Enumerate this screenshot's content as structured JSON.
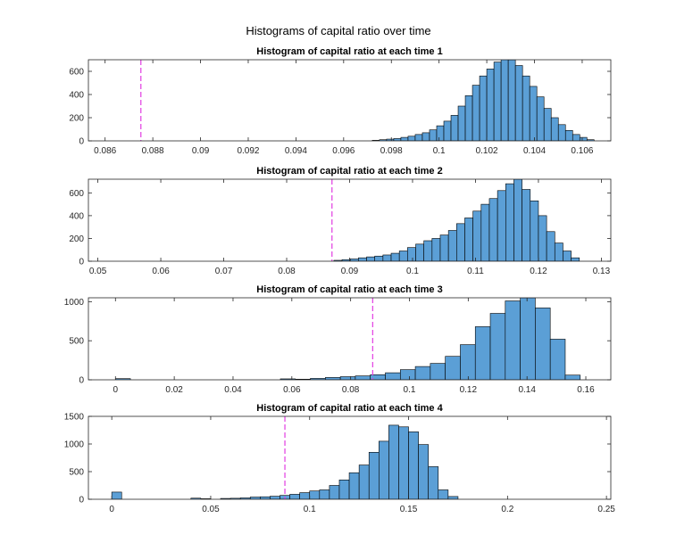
{
  "figure": {
    "title": "Histograms of capital ratio over time",
    "bar_color": "#5B9FD6",
    "bar_edge_color": "#000000",
    "threshold_color": "#E23DE2"
  },
  "chart_data": [
    {
      "type": "bar",
      "title": "Histogram of capital ratio at each time 1",
      "xlim": [
        0.0853,
        0.1072
      ],
      "ylim": [
        0,
        700
      ],
      "xticks": [
        0.086,
        0.088,
        0.09,
        0.092,
        0.094,
        0.096,
        0.098,
        0.1,
        0.102,
        0.104,
        0.106
      ],
      "xtick_labels": [
        "0.086",
        "0.088",
        "0.09",
        "0.092",
        "0.094",
        "0.096",
        "0.098",
        "0.1",
        "0.102",
        "0.104",
        "0.106"
      ],
      "yticks": [
        0,
        200,
        400,
        600
      ],
      "ytick_labels": [
        "0",
        "200",
        "400",
        "600"
      ],
      "bin_edges": [
        0.0972,
        0.0975,
        0.0978,
        0.0981,
        0.0984,
        0.0987,
        0.099,
        0.0993,
        0.0996,
        0.0999,
        0.1002,
        0.1005,
        0.1008,
        0.1011,
        0.1014,
        0.1017,
        0.102,
        0.1023,
        0.1026,
        0.1029,
        0.1032,
        0.1035,
        0.1038,
        0.1041,
        0.1044,
        0.1047,
        0.105,
        0.1053,
        0.1056,
        0.1059,
        0.1062,
        0.1065
      ],
      "values": [
        5,
        10,
        15,
        20,
        30,
        40,
        55,
        70,
        95,
        130,
        170,
        220,
        300,
        390,
        480,
        560,
        620,
        680,
        710,
        700,
        650,
        560,
        470,
        380,
        280,
        200,
        140,
        90,
        55,
        30,
        10
      ],
      "threshold": 0.0875
    },
    {
      "type": "bar",
      "title": "Histogram of capital ratio at each time 2",
      "xlim": [
        0.0485,
        0.1315
      ],
      "ylim": [
        0,
        720
      ],
      "xticks": [
        0.05,
        0.06,
        0.07,
        0.08,
        0.09,
        0.1,
        0.11,
        0.12,
        0.13
      ],
      "xtick_labels": [
        "0.05",
        "0.06",
        "0.07",
        "0.08",
        "0.09",
        "0.1",
        "0.11",
        "0.12",
        "0.13"
      ],
      "yticks": [
        0,
        200,
        400,
        600
      ],
      "ytick_labels": [
        "0",
        "200",
        "400",
        "600"
      ],
      "bin_edges": [
        0.0875,
        0.0888,
        0.0901,
        0.0914,
        0.0927,
        0.094,
        0.0953,
        0.0966,
        0.0979,
        0.0992,
        0.1005,
        0.1018,
        0.1031,
        0.1044,
        0.1057,
        0.107,
        0.1083,
        0.1096,
        0.1109,
        0.1122,
        0.1135,
        0.1148,
        0.1161,
        0.1174,
        0.1187,
        0.12,
        0.1213,
        0.1226,
        0.1239,
        0.1252,
        0.1265
      ],
      "values": [
        8,
        14,
        20,
        30,
        38,
        45,
        55,
        70,
        90,
        120,
        150,
        180,
        200,
        230,
        270,
        330,
        380,
        440,
        500,
        550,
        620,
        680,
        720,
        630,
        530,
        400,
        260,
        160,
        90,
        30
      ],
      "threshold": 0.0872
    },
    {
      "type": "bar",
      "title": "Histogram of capital ratio at each time 3",
      "xlim": [
        -0.0092,
        0.1685
      ],
      "ylim": [
        0,
        1050
      ],
      "xticks": [
        0,
        0.02,
        0.04,
        0.06,
        0.08,
        0.1,
        0.12,
        0.14,
        0.16
      ],
      "xtick_labels": [
        "0",
        "0.02",
        "0.04",
        "0.06",
        "0.08",
        "0.1",
        "0.12",
        "0.14",
        "0.16"
      ],
      "yticks": [
        0,
        500,
        1000
      ],
      "ytick_labels": [
        "0",
        "500",
        "1000"
      ],
      "bin_edges": [
        0.0,
        0.0051,
        0.0102,
        0.0153,
        0.0204,
        0.0255,
        0.0306,
        0.0357,
        0.0408,
        0.0459,
        0.051,
        0.0561,
        0.0612,
        0.0663,
        0.0714,
        0.0765,
        0.0816,
        0.0867,
        0.0918,
        0.0969,
        0.102,
        0.1071,
        0.1122,
        0.1173,
        0.1224,
        0.1275,
        0.1326,
        0.1377,
        0.1428,
        0.1479,
        0.153,
        0.1581
      ],
      "values": [
        15,
        0,
        0,
        0,
        0,
        0,
        0,
        0,
        0,
        0,
        0,
        12,
        8,
        18,
        30,
        40,
        50,
        65,
        90,
        130,
        170,
        210,
        300,
        450,
        680,
        850,
        1010,
        1050,
        920,
        520,
        60
      ],
      "threshold": 0.0875
    },
    {
      "type": "bar",
      "title": "Histogram of capital ratio at each time 4",
      "xlim": [
        -0.0118,
        0.2522
      ],
      "ylim": [
        0,
        1500
      ],
      "xticks": [
        0,
        0.05,
        0.1,
        0.15,
        0.2,
        0.25
      ],
      "xtick_labels": [
        "0",
        "0.05",
        "0.1",
        "0.15",
        "0.2",
        "0.25"
      ],
      "yticks": [
        0,
        500,
        1000,
        1500
      ],
      "ytick_labels": [
        "0",
        "500",
        "1000",
        "1500"
      ],
      "bin_edges": [
        0.0,
        0.005,
        0.01,
        0.015,
        0.02,
        0.025,
        0.03,
        0.035,
        0.04,
        0.045,
        0.05,
        0.055,
        0.06,
        0.065,
        0.07,
        0.075,
        0.08,
        0.085,
        0.09,
        0.095,
        0.1,
        0.105,
        0.11,
        0.115,
        0.12,
        0.125,
        0.13,
        0.135,
        0.14,
        0.145,
        0.15,
        0.155,
        0.16,
        0.165,
        0.17,
        0.175
      ],
      "values": [
        130,
        0,
        0,
        0,
        0,
        0,
        0,
        0,
        20,
        10,
        0,
        15,
        18,
        25,
        40,
        45,
        55,
        70,
        90,
        120,
        150,
        170,
        250,
        350,
        480,
        620,
        850,
        1050,
        1340,
        1310,
        1220,
        990,
        590,
        170,
        50
      ],
      "threshold": 0.0875
    }
  ]
}
